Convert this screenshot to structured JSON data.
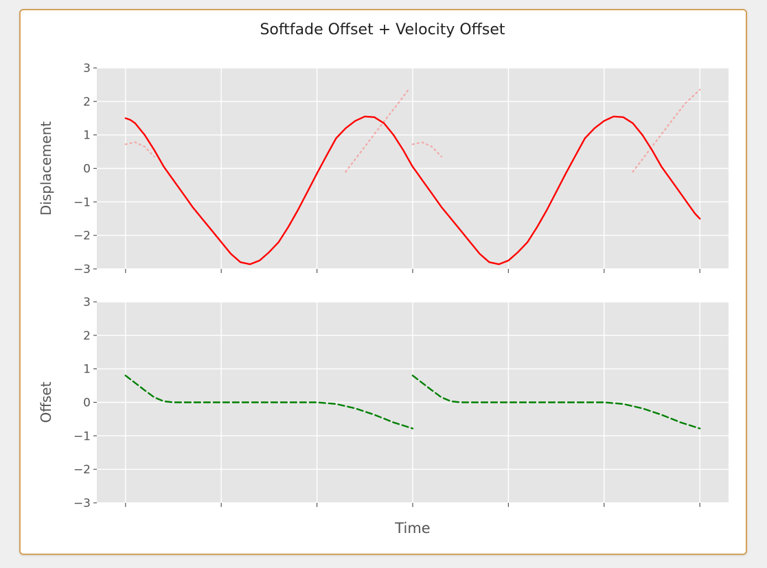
{
  "chart_data": {
    "title": "Softfade Offset + Velocity Offset",
    "colors": {
      "panel_bg": "#e5e5e5",
      "grid": "#ffffff",
      "displacement": "#ff0000",
      "underlying": "#f4a6a6",
      "offset": "#008000",
      "text": "#555555",
      "frame_border": "#d4a15a"
    },
    "subplots": [
      {
        "type": "line",
        "ylabel": "Displacement",
        "xlabel": "",
        "ylim": [
          -3,
          3
        ],
        "yticks": [
          -3,
          -2,
          -1,
          0,
          1,
          2,
          3
        ],
        "ytick_labels": [
          "−3",
          "−2",
          "−1",
          "0",
          "1",
          "2",
          "3"
        ],
        "xlim": [
          -0.3,
          6.3
        ],
        "xticks": [
          0,
          1,
          2,
          3,
          4,
          5,
          6
        ],
        "grid": true,
        "series": [
          {
            "style": "dotted",
            "color": "#f4a6a6",
            "segments": [
              {
                "x": [
                  0,
                  0.1,
                  0.2,
                  0.3
                ],
                "y": [
                  0.72,
                  0.78,
                  0.65,
                  0.35
                ]
              },
              {
                "x": [
                  2.3,
                  2.5,
                  2.7,
                  2.85,
                  2.95
                ],
                "y": [
                  -0.1,
                  0.65,
                  1.4,
                  1.95,
                  2.33
                ]
              },
              {
                "x": [
                  3.0,
                  3.1,
                  3.2,
                  3.3
                ],
                "y": [
                  0.72,
                  0.78,
                  0.65,
                  0.35
                ]
              },
              {
                "x": [
                  5.3,
                  5.5,
                  5.7,
                  5.85,
                  6.0
                ],
                "y": [
                  -0.1,
                  0.65,
                  1.4,
                  1.95,
                  2.35
                ]
              }
            ]
          },
          {
            "style": "solid",
            "color": "#ff0000",
            "segments": [
              {
                "x": [
                  0,
                  0.05,
                  0.1,
                  0.2,
                  0.3,
                  0.4,
                  0.5,
                  0.6,
                  0.7,
                  0.8,
                  0.9,
                  1.0,
                  1.1,
                  1.2,
                  1.3,
                  1.4,
                  1.5,
                  1.6,
                  1.7,
                  1.8,
                  1.9,
                  2.0,
                  2.1,
                  2.2,
                  2.3,
                  2.4,
                  2.5,
                  2.6,
                  2.7,
                  2.8,
                  2.9,
                  2.95,
                  3.0,
                  3.05,
                  3.1,
                  3.2,
                  3.3,
                  3.4,
                  3.5,
                  3.6,
                  3.7,
                  3.8,
                  3.9,
                  4.0,
                  4.1,
                  4.2,
                  4.3,
                  4.4,
                  4.5,
                  4.6,
                  4.7,
                  4.8,
                  4.9,
                  5.0,
                  5.1,
                  5.2,
                  5.3,
                  5.4,
                  5.5,
                  5.6,
                  5.7,
                  5.8,
                  5.9,
                  5.95,
                  6.0
                ],
                "y": [
                  1.5,
                  1.45,
                  1.35,
                  1.0,
                  0.55,
                  0.05,
                  -0.35,
                  -0.75,
                  -1.15,
                  -1.5,
                  -1.85,
                  -2.2,
                  -2.55,
                  -2.8,
                  -2.86,
                  -2.75,
                  -2.5,
                  -2.2,
                  -1.75,
                  -1.25,
                  -0.7,
                  -0.15,
                  0.38,
                  0.9,
                  1.2,
                  1.42,
                  1.55,
                  1.53,
                  1.35,
                  1.0,
                  0.55,
                  0.3,
                  0.05,
                  -0.15,
                  -0.35,
                  -0.75,
                  -1.15,
                  -1.5,
                  -1.85,
                  -2.2,
                  -2.55,
                  -2.8,
                  -2.86,
                  -2.75,
                  -2.5,
                  -2.2,
                  -1.75,
                  -1.25,
                  -0.7,
                  -0.15,
                  0.38,
                  0.9,
                  1.2,
                  1.42,
                  1.55,
                  1.53,
                  1.35,
                  1.0,
                  0.55,
                  0.05,
                  -0.35,
                  -0.75,
                  -1.15,
                  -1.35,
                  -1.5
                ]
              }
            ]
          }
        ]
      },
      {
        "type": "line",
        "ylabel": "Offset",
        "xlabel": "Time",
        "ylim": [
          -3,
          3
        ],
        "yticks": [
          -3,
          -2,
          -1,
          0,
          1,
          2,
          3
        ],
        "ytick_labels": [
          "−3",
          "−2",
          "−1",
          "0",
          "1",
          "2",
          "3"
        ],
        "xlim": [
          -0.3,
          6.3
        ],
        "xticks": [
          0,
          1,
          2,
          3,
          4,
          5,
          6
        ],
        "grid": true,
        "series": [
          {
            "style": "dashed",
            "color": "#008000",
            "segments": [
              {
                "x": [
                  0,
                  0.1,
                  0.2,
                  0.3,
                  0.4,
                  0.5,
                  1.0,
                  1.5,
                  2.0,
                  2.2,
                  2.4,
                  2.6,
                  2.8,
                  3.0
                ],
                "y": [
                  0.8,
                  0.58,
                  0.36,
                  0.15,
                  0.03,
                  0.0,
                  0.0,
                  0.0,
                  0.0,
                  -0.05,
                  -0.18,
                  -0.37,
                  -0.6,
                  -0.78
                ]
              },
              {
                "x": [
                  3.0,
                  3.1,
                  3.2,
                  3.3,
                  3.4,
                  3.5,
                  4.0,
                  4.5,
                  5.0,
                  5.2,
                  5.4,
                  5.6,
                  5.8,
                  6.0
                ],
                "y": [
                  0.8,
                  0.58,
                  0.36,
                  0.15,
                  0.03,
                  0.0,
                  0.0,
                  0.0,
                  0.0,
                  -0.05,
                  -0.18,
                  -0.37,
                  -0.6,
                  -0.78
                ]
              }
            ]
          }
        ]
      }
    ]
  }
}
